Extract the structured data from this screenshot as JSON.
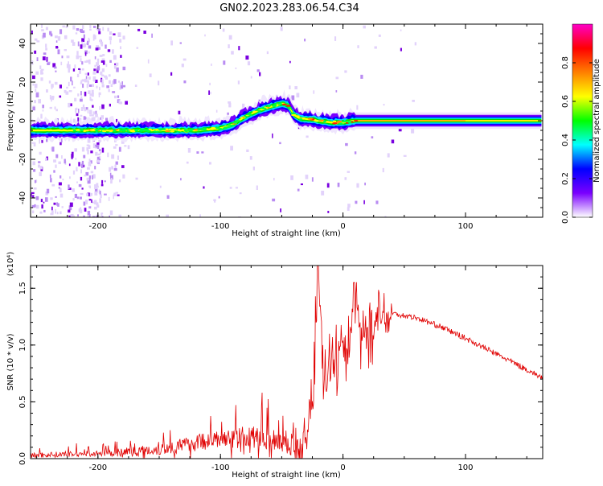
{
  "title": "GN02.2023.283.06.54.C34",
  "colorbar": {
    "label": "Normalized spectral amplitude",
    "ticks": [
      "0.0",
      "0.2",
      "0.4",
      "0.6",
      "0.8"
    ],
    "range": [
      0,
      1
    ],
    "colors": [
      "#ffffff",
      "#7a00ff",
      "#0000ff",
      "#00ffff",
      "#00ff00",
      "#ffff00",
      "#ff8000",
      "#ff0000",
      "#ff00c8"
    ]
  },
  "chart_data": [
    {
      "type": "heatmap",
      "title": "",
      "xlabel": "Height of straight line (km)",
      "ylabel": "Frequency (Hz)",
      "xlim": [
        -255,
        163
      ],
      "ylim": [
        -50,
        50
      ],
      "x_ticks": [
        "-200",
        "-100",
        "0",
        "100"
      ],
      "y_ticks": [
        "-40",
        "-20",
        "0",
        "20",
        "40"
      ],
      "ridge": {
        "x": [
          -255,
          -200,
          -150,
          -120,
          -100,
          -90,
          -80,
          -70,
          -60,
          -50,
          -45,
          -40,
          -35,
          -30,
          -20,
          -10,
          0,
          10,
          50,
          100,
          163
        ],
        "freq_hz": [
          -5,
          -5,
          -5,
          -5,
          -4,
          -2,
          2,
          5,
          7,
          9,
          8,
          3,
          1,
          1,
          0,
          -1,
          -1,
          0,
          0,
          0,
          0
        ]
      },
      "scatter_region_x": [
        -255,
        -180
      ]
    },
    {
      "type": "line",
      "title": "",
      "xlabel": "Height of straight line (km)",
      "ylabel": "SNR (10 * v/v)",
      "y_scale_label": "(x10⁴)",
      "xlim": [
        -255,
        163
      ],
      "ylim": [
        0,
        1.7
      ],
      "x_ticks": [
        "-200",
        "-100",
        "0",
        "100"
      ],
      "y_ticks": [
        "0.0",
        "0.5",
        "1.0",
        "1.5"
      ],
      "series": [
        {
          "color": "#e00000",
          "x": [
            -255,
            -220,
            -180,
            -150,
            -130,
            -110,
            -100,
            -80,
            -60,
            -45,
            -35,
            -30,
            -25,
            -20,
            -15,
            -10,
            -5,
            0,
            5,
            10,
            15,
            20,
            30,
            40,
            60,
            80,
            100,
            120,
            140,
            163
          ],
          "values": [
            0.02,
            0.03,
            0.04,
            0.06,
            0.09,
            0.13,
            0.13,
            0.15,
            0.14,
            0.1,
            0.05,
            0.3,
            0.55,
            1.7,
            0.65,
            0.85,
            0.9,
            0.95,
            1.0,
            1.55,
            1.05,
            1.15,
            1.25,
            1.28,
            1.24,
            1.16,
            1.06,
            0.95,
            0.84,
            0.71
          ]
        }
      ]
    }
  ]
}
